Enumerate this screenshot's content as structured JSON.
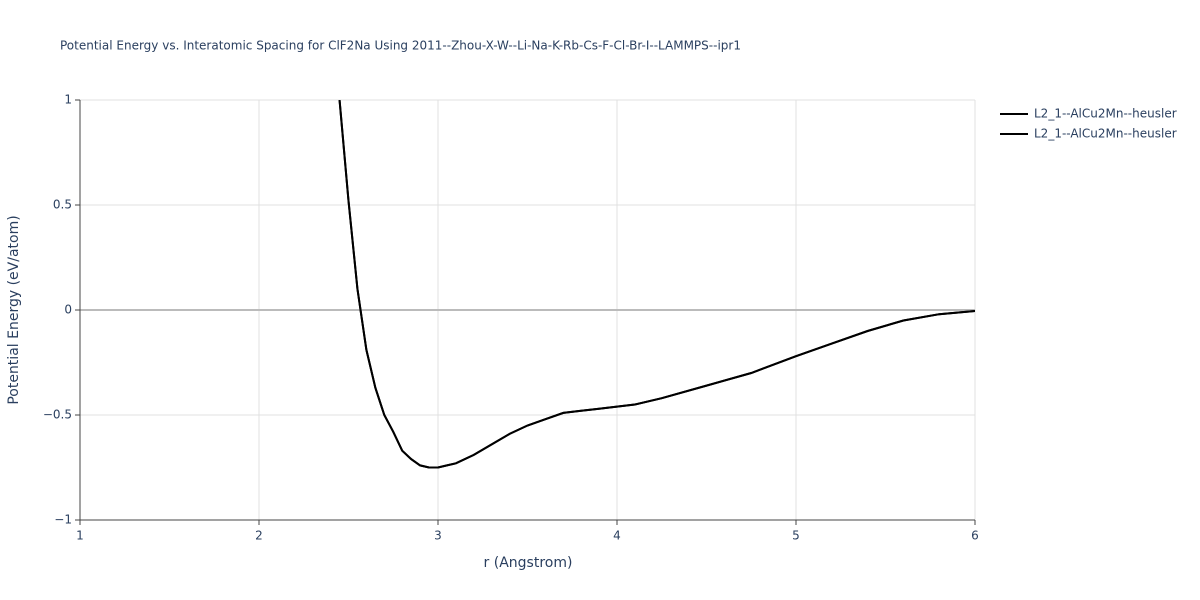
{
  "chart_data": {
    "type": "line",
    "title": "Potential Energy vs. Interatomic Spacing for ClF2Na Using 2011--Zhou-X-W--Li-Na-K-Rb-Cs-F-Cl-Br-I--LAMMPS--ipr1",
    "x_label": "r (Angstrom)",
    "y_label": "Potential Energy (eV/atom)",
    "x": [
      2.45,
      2.5,
      2.55,
      2.6,
      2.65,
      2.7,
      2.75,
      2.8,
      2.85,
      2.9,
      2.95,
      3.0,
      3.05,
      3.1,
      3.2,
      3.3,
      3.4,
      3.5,
      3.6,
      3.7,
      3.8,
      3.9,
      4.0,
      4.1,
      4.25,
      4.5,
      4.75,
      5.0,
      5.2,
      5.4,
      5.6,
      5.8,
      6.0
    ],
    "series": [
      {
        "name": "L2_1--AlCu2Mn--heusler",
        "color": "#000000",
        "values": [
          1.0,
          0.52,
          0.1,
          -0.19,
          -0.37,
          -0.5,
          -0.58,
          -0.67,
          -0.71,
          -0.74,
          -0.75,
          -0.75,
          -0.74,
          -0.73,
          -0.69,
          -0.64,
          -0.59,
          -0.55,
          -0.52,
          -0.49,
          -0.48,
          -0.47,
          -0.46,
          -0.45,
          -0.42,
          -0.36,
          -0.3,
          -0.22,
          -0.16,
          -0.1,
          -0.05,
          -0.02,
          -0.005
        ]
      },
      {
        "name": "L2_1--AlCu2Mn--heusler",
        "color": "#000000",
        "values": [
          1.0,
          0.52,
          0.1,
          -0.19,
          -0.37,
          -0.5,
          -0.58,
          -0.67,
          -0.71,
          -0.74,
          -0.75,
          -0.75,
          -0.74,
          -0.73,
          -0.69,
          -0.64,
          -0.59,
          -0.55,
          -0.52,
          -0.49,
          -0.48,
          -0.47,
          -0.46,
          -0.45,
          -0.42,
          -0.36,
          -0.3,
          -0.22,
          -0.16,
          -0.1,
          -0.05,
          -0.02,
          -0.005
        ]
      }
    ],
    "xlim": [
      1,
      6
    ],
    "xticks": [
      1,
      2,
      3,
      4,
      5,
      6
    ],
    "ylim": [
      -1,
      1
    ],
    "yticks": [
      {
        "value": -1,
        "label": "−1"
      },
      {
        "value": -0.5,
        "label": "−0.5"
      },
      0,
      0.5,
      1
    ],
    "grid": true,
    "legend": "top-right"
  }
}
